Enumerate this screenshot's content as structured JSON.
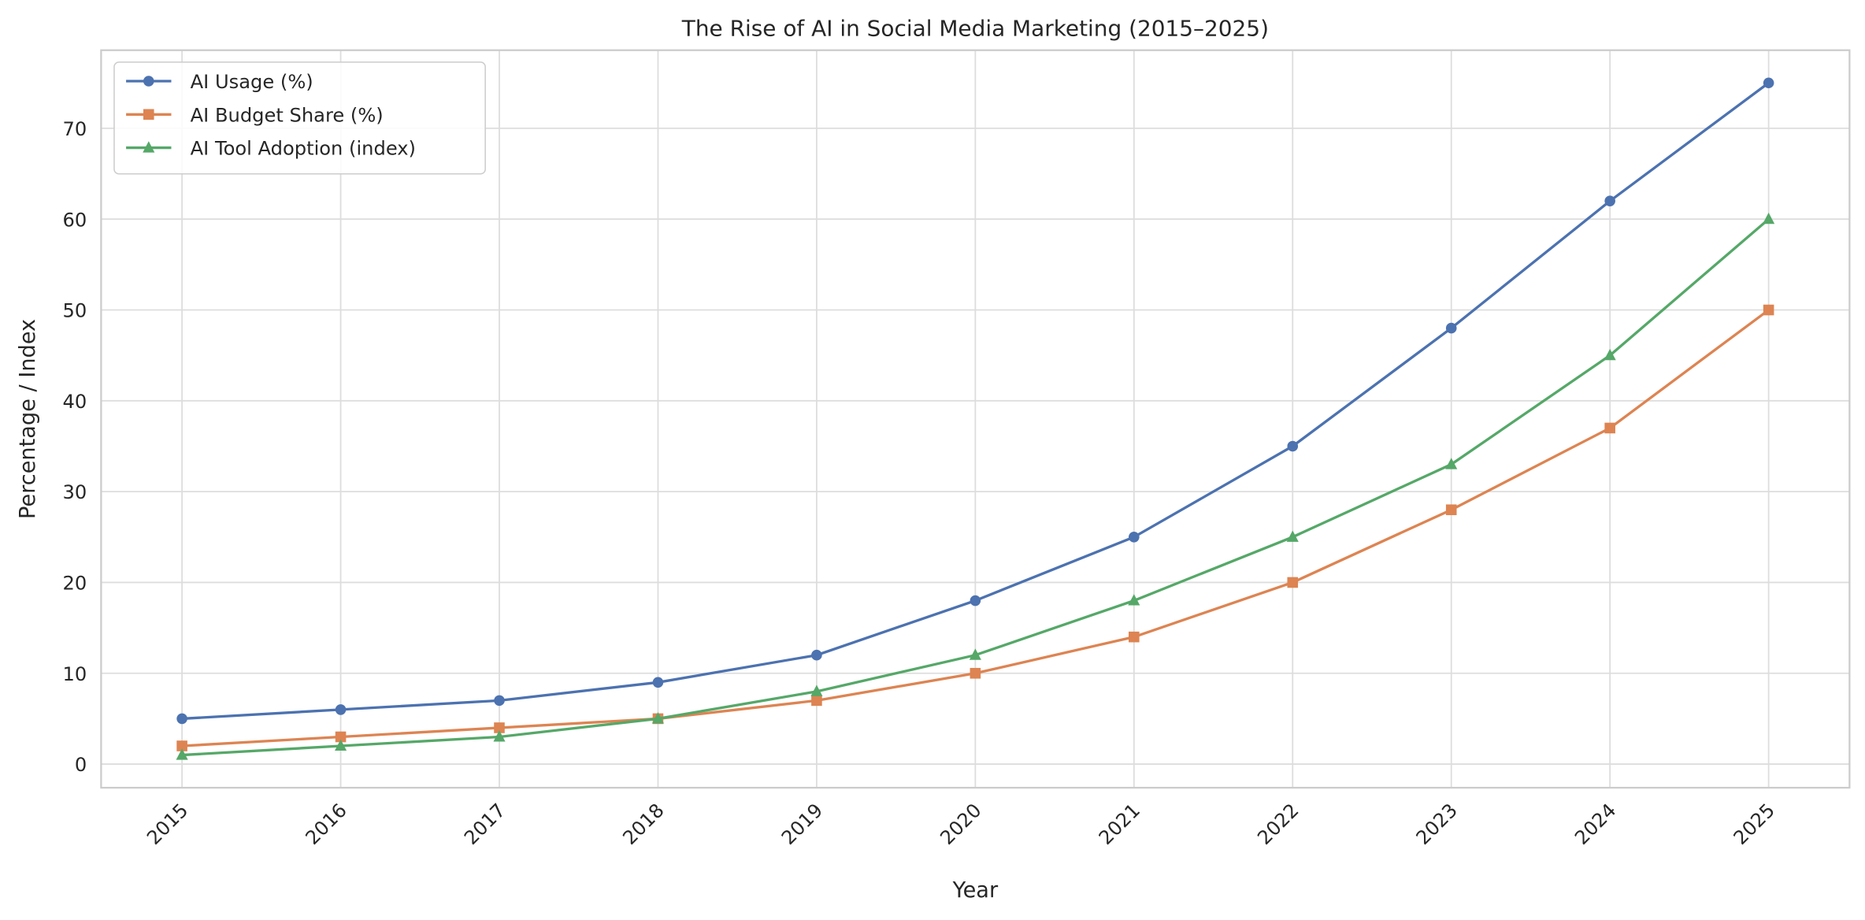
{
  "chart_data": {
    "type": "line",
    "title": "The Rise of AI in Social Media Marketing (2015–2025)",
    "xlabel": "Year",
    "ylabel": "Percentage / Index",
    "x": [
      2015,
      2016,
      2017,
      2018,
      2019,
      2020,
      2021,
      2022,
      2023,
      2024,
      2025
    ],
    "xtick_labels": [
      "2015",
      "2016",
      "2017",
      "2018",
      "2019",
      "2020",
      "2021",
      "2022",
      "2023",
      "2024",
      "2025"
    ],
    "ytick_labels": [
      "0",
      "10",
      "20",
      "30",
      "40",
      "50",
      "60",
      "70"
    ],
    "yticks": [
      0,
      10,
      20,
      30,
      40,
      50,
      60,
      70
    ],
    "xlim": [
      2014.49,
      2025.51
    ],
    "ylim": [
      -2.6,
      78.6
    ],
    "grid": true,
    "legend_position": "upper-left",
    "series": [
      {
        "name": "AI Usage (%)",
        "color": "#4c72b0",
        "marker": "circle",
        "values": [
          5,
          6,
          7,
          9,
          12,
          18,
          25,
          35,
          48,
          62,
          75
        ]
      },
      {
        "name": "AI Budget Share (%)",
        "color": "#dd8452",
        "marker": "square",
        "values": [
          2,
          3,
          4,
          5,
          7,
          10,
          14,
          20,
          28,
          37,
          50
        ]
      },
      {
        "name": "AI Tool Adoption (index)",
        "color": "#55a868",
        "marker": "triangle",
        "values": [
          1,
          2,
          3,
          5,
          8,
          12,
          18,
          25,
          33,
          45,
          60
        ]
      }
    ]
  }
}
